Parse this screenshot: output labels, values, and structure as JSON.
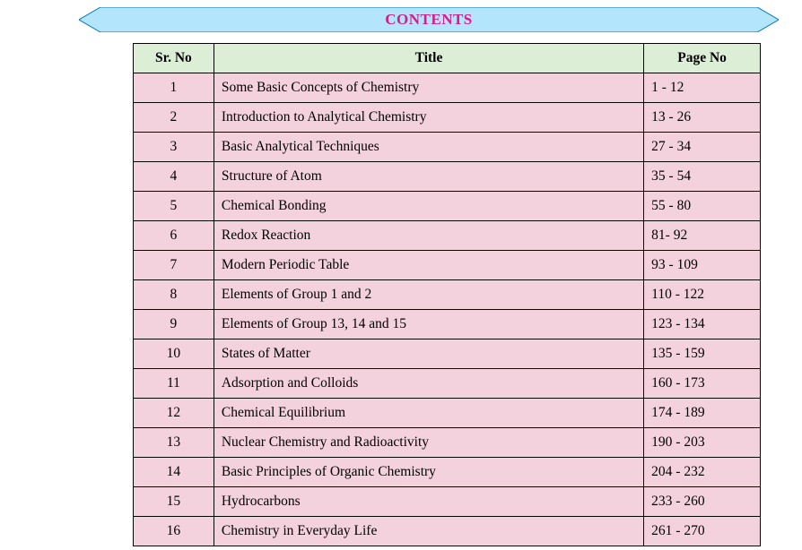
{
  "heading": {
    "text": "CONTENTS",
    "color": "#d81b8c",
    "fontsize": 17,
    "banner_fill": "#b3e5fc",
    "banner_stroke": "#0277bd"
  },
  "table": {
    "header_bg": "#dcefd6",
    "row_bg": "#f3d1dd",
    "border_color": "#000000",
    "col_widths": {
      "sr": 90,
      "title": 480,
      "page": 130
    },
    "columns": {
      "sr": "Sr. No",
      "title": "Title",
      "page": "Page No"
    },
    "rows": [
      {
        "sr": "1",
        "title": "Some Basic Concepts of Chemistry",
        "page": "1 - 12"
      },
      {
        "sr": "2",
        "title": "Introduction to Analytical Chemistry",
        "page": "13 - 26"
      },
      {
        "sr": "3",
        "title": "Basic Analytical Techniques",
        "page": "27 - 34"
      },
      {
        "sr": "4",
        "title": "Structure of Atom",
        "page": "35 - 54"
      },
      {
        "sr": "5",
        "title": "Chemical Bonding",
        "page": "55 - 80"
      },
      {
        "sr": "6",
        "title": "Redox Reaction",
        "page": "81- 92"
      },
      {
        "sr": "7",
        "title": "Modern Periodic Table",
        "page": "93 - 109"
      },
      {
        "sr": "8",
        "title": "Elements of Group 1 and 2",
        "page": "110 - 122"
      },
      {
        "sr": "9",
        "title": "Elements of Group 13, 14 and 15",
        "page": "123 - 134"
      },
      {
        "sr": "10",
        "title": "States of Matter",
        "page": "135 - 159"
      },
      {
        "sr": "11",
        "title": "Adsorption and Colloids",
        "page": "160 - 173"
      },
      {
        "sr": "12",
        "title": "Chemical Equilibrium",
        "page": "174 - 189"
      },
      {
        "sr": "13",
        "title": "Nuclear Chemistry and Radioactivity",
        "page": "190 - 203"
      },
      {
        "sr": "14",
        "title": "Basic Principles of Organic Chemistry",
        "page": "204 - 232"
      },
      {
        "sr": "15",
        "title": "Hydrocarbons",
        "page": "233 - 260"
      },
      {
        "sr": "16",
        "title": "Chemistry in Everyday Life",
        "page": "261 - 270"
      }
    ]
  }
}
